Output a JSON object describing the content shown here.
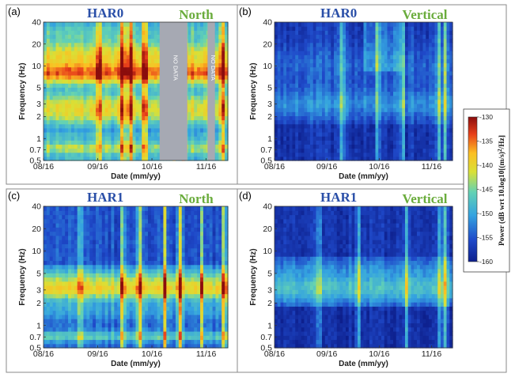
{
  "colors": {
    "station_title": "#2a4fa8",
    "component_title": "#6aac3c",
    "nodata_fill": "#a6a9b3",
    "border": "#8a8a8a"
  },
  "colorbar": {
    "label_main": "Power (dB wrt 10.log10[(m/s)",
    "label_sup": "2",
    "label_end": "/Hz]",
    "ticks": [
      "-130",
      "-135",
      "-140",
      "-145",
      "-150",
      "-155",
      "-160"
    ]
  },
  "chart_data": [
    {
      "type": "heatmap",
      "panel": "(a)",
      "title": "HAR0",
      "component": "North",
      "xlabel": "Date (mm/yy)",
      "ylabel": "Frequency (Hz)",
      "yscale": "log",
      "ylim": [
        0.5,
        40
      ],
      "x_ticks": [
        "08/16",
        "09/16",
        "10/16",
        "11/16"
      ],
      "y_ticks": [
        "0.5",
        "0.7",
        "1",
        "2",
        "3",
        "5",
        "10",
        "20",
        "40"
      ],
      "value_range_db": [
        -160,
        -130
      ],
      "annotations": [
        "NO DATA",
        "NO DATA"
      ],
      "no_data_gaps": 2
    },
    {
      "type": "heatmap",
      "panel": "(b)",
      "title": "HAR0",
      "component": "Vertical",
      "xlabel": "Date (mm/yy)",
      "ylabel": "Frequency (Hz)",
      "yscale": "log",
      "ylim": [
        0.5,
        40
      ],
      "x_ticks": [
        "08/16",
        "09/16",
        "10/16",
        "11/16"
      ],
      "y_ticks": [
        "0.5",
        "0.7",
        "1",
        "2",
        "3",
        "5",
        "10",
        "20",
        "40"
      ],
      "value_range_db": [
        -160,
        -130
      ]
    },
    {
      "type": "heatmap",
      "panel": "(c)",
      "title": "HAR1",
      "component": "North",
      "xlabel": "Date (mm/yy)",
      "ylabel": "Frequency (Hz)",
      "yscale": "log",
      "ylim": [
        0.5,
        40
      ],
      "x_ticks": [
        "08/16",
        "09/16",
        "10/16",
        "11/16"
      ],
      "y_ticks": [
        "0.5",
        "0.7",
        "1",
        "2",
        "3",
        "5",
        "10",
        "20",
        "40"
      ],
      "value_range_db": [
        -160,
        -130
      ]
    },
    {
      "type": "heatmap",
      "panel": "(d)",
      "title": "HAR1",
      "component": "Vertical",
      "xlabel": "Date (mm/yy)",
      "ylabel": "Frequency (Hz)",
      "yscale": "log",
      "ylim": [
        0.5,
        40
      ],
      "x_ticks": [
        "08/16",
        "09/16",
        "10/16",
        "11/16"
      ],
      "y_ticks": [
        "0.5",
        "0.7",
        "1",
        "2",
        "3",
        "5",
        "10",
        "20",
        "40"
      ],
      "value_range_db": [
        -160,
        -130
      ]
    }
  ]
}
